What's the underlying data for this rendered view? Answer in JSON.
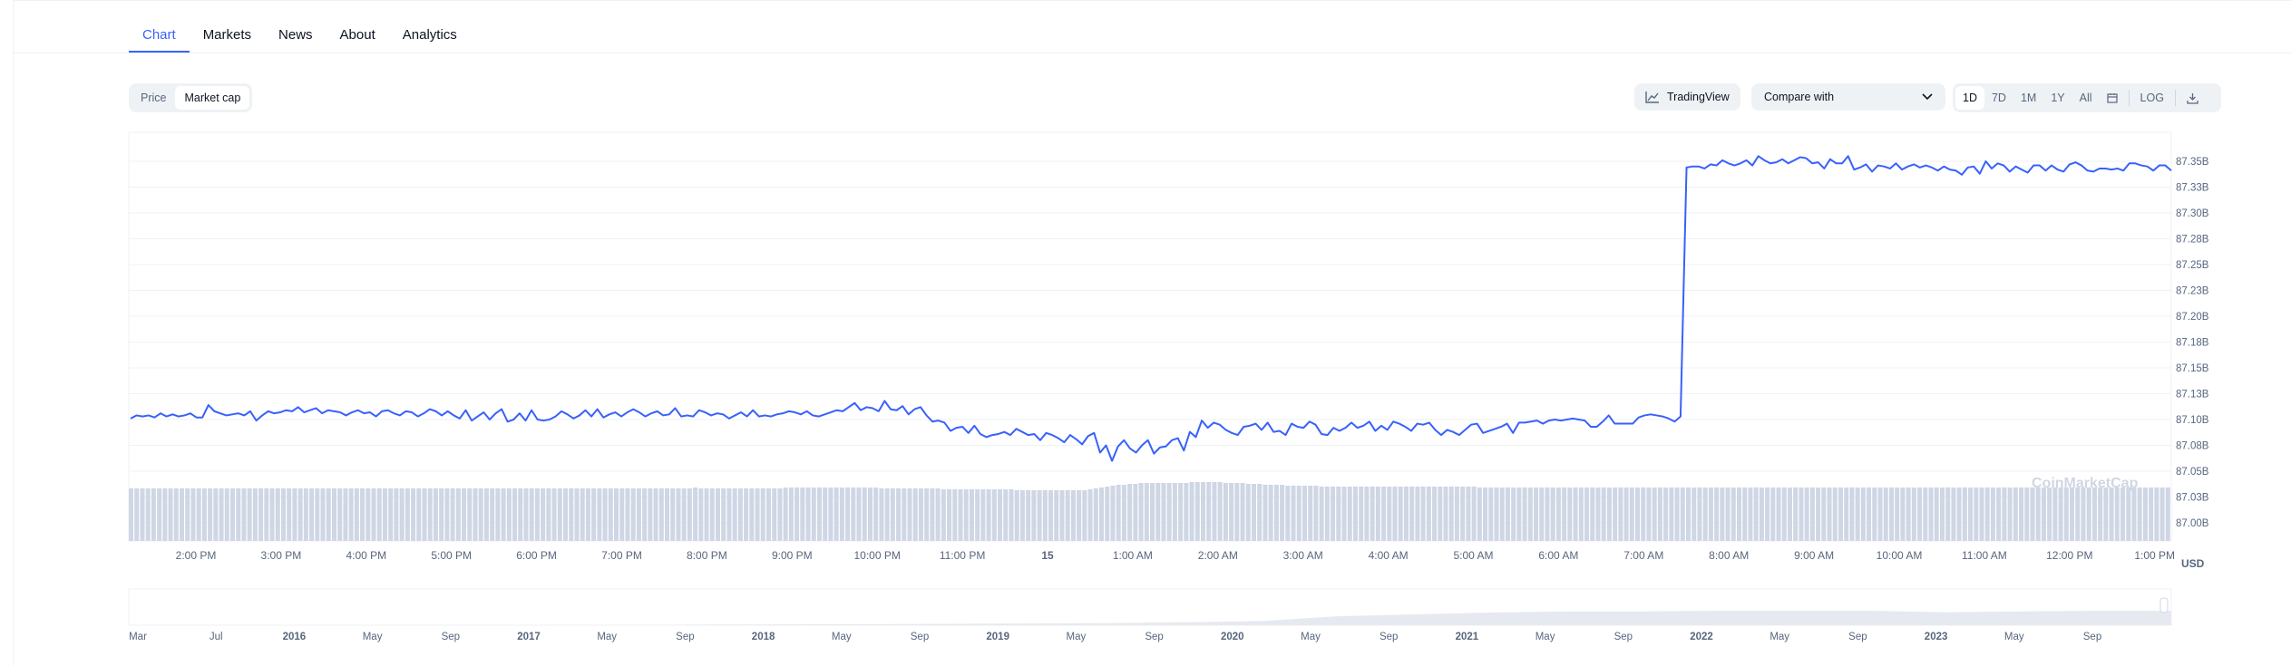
{
  "tabs": [
    {
      "label": "Chart",
      "active": true
    },
    {
      "label": "Markets",
      "active": false
    },
    {
      "label": "News",
      "active": false
    },
    {
      "label": "About",
      "active": false
    },
    {
      "label": "Analytics",
      "active": false
    }
  ],
  "toolbar": {
    "metric_options": [
      {
        "label": "Price",
        "active": false
      },
      {
        "label": "Market cap",
        "active": true
      }
    ],
    "tradingview_label": "TradingView",
    "compare_label": "Compare with",
    "ranges": [
      {
        "label": "1D",
        "active": true
      },
      {
        "label": "7D",
        "active": false
      },
      {
        "label": "1M",
        "active": false
      },
      {
        "label": "1Y",
        "active": false
      },
      {
        "label": "All",
        "active": false
      }
    ],
    "calendar_icon": "calendar-icon",
    "log_label": "LOG",
    "download_icon": "download-icon"
  },
  "watermark": "CoinMarketCap",
  "colors": {
    "accent": "#3861fb",
    "line": "#3861fb",
    "volume": "#cfd6e4",
    "grid": "#eff2f5",
    "axis_text": "#58667e"
  },
  "chart_data": {
    "type": "line",
    "y_unit": "USD",
    "ylim": [
      87.0,
      87.36
    ],
    "y_ticks": [
      "87.35B",
      "87.33B",
      "87.30B",
      "87.28B",
      "87.25B",
      "87.23B",
      "87.20B",
      "87.18B",
      "87.15B",
      "87.13B",
      "87.10B",
      "87.08B",
      "87.05B",
      "87.03B",
      "87.00B"
    ],
    "x_ticks": [
      "2:00 PM",
      "3:00 PM",
      "4:00 PM",
      "5:00 PM",
      "6:00 PM",
      "7:00 PM",
      "8:00 PM",
      "9:00 PM",
      "10:00 PM",
      "11:00 PM",
      "15",
      "1:00 AM",
      "2:00 AM",
      "3:00 AM",
      "4:00 AM",
      "5:00 AM",
      "6:00 AM",
      "7:00 AM",
      "8:00 AM",
      "9:00 AM",
      "10:00 AM",
      "11:00 AM",
      "12:00 PM",
      "1:00 PM"
    ],
    "x_tick_bold": [
      "15"
    ],
    "series": [
      {
        "values": [
          87.101,
          87.104,
          87.103,
          87.104,
          87.102,
          87.106,
          87.103,
          87.105,
          87.103,
          87.104,
          87.106,
          87.102,
          87.102,
          87.114,
          87.108,
          87.106,
          87.104,
          87.105,
          87.106,
          87.104,
          87.108,
          87.099,
          87.104,
          87.108,
          87.106,
          87.107,
          87.109,
          87.108,
          87.112,
          87.107,
          87.109,
          87.111,
          87.106,
          87.109,
          87.108,
          87.107,
          87.104,
          87.107,
          87.109,
          87.106,
          87.107,
          87.103,
          87.108,
          87.109,
          87.106,
          87.104,
          87.108,
          87.107,
          87.103,
          87.106,
          87.11,
          87.108,
          87.104,
          87.108,
          87.104,
          87.101,
          87.109,
          87.099,
          87.103,
          87.107,
          87.1,
          87.106,
          87.11,
          87.098,
          87.1,
          87.106,
          87.099,
          87.109,
          87.1,
          87.099,
          87.1,
          87.103,
          87.108,
          87.105,
          87.101,
          87.104,
          87.109,
          87.103,
          87.11,
          87.102,
          87.105,
          87.107,
          87.103,
          87.107,
          87.11,
          87.107,
          87.103,
          87.106,
          87.108,
          87.104,
          87.105,
          87.111,
          87.103,
          87.104,
          87.103,
          87.109,
          87.107,
          87.104,
          87.106,
          87.105,
          87.101,
          87.104,
          87.107,
          87.103,
          87.109,
          87.103,
          87.104,
          87.103,
          87.105,
          87.106,
          87.108,
          87.107,
          87.105,
          87.108,
          87.104,
          87.103,
          87.105,
          87.107,
          87.109,
          87.108,
          87.112,
          87.116,
          87.109,
          87.112,
          87.111,
          87.108,
          87.118,
          87.11,
          87.109,
          87.113,
          87.105,
          87.11,
          87.112,
          87.104,
          87.098,
          87.099,
          87.097,
          87.089,
          87.092,
          87.093,
          87.087,
          87.094,
          87.086,
          87.083,
          87.085,
          87.086,
          87.088,
          87.085,
          87.091,
          87.088,
          87.085,
          87.086,
          87.08,
          87.087,
          87.085,
          87.082,
          87.078,
          87.085,
          87.081,
          87.076,
          87.084,
          87.087,
          87.068,
          87.075,
          87.06,
          87.074,
          87.08,
          87.072,
          87.068,
          87.075,
          87.08,
          87.067,
          87.073,
          87.074,
          87.08,
          87.082,
          87.07,
          87.088,
          87.083,
          87.099,
          87.092,
          87.097,
          87.095,
          87.09,
          87.087,
          87.085,
          87.093,
          87.094,
          87.096,
          87.09,
          87.097,
          87.088,
          87.089,
          87.085,
          87.096,
          87.093,
          87.092,
          87.098,
          87.095,
          87.086,
          87.085,
          87.092,
          87.089,
          87.092,
          87.097,
          87.092,
          87.094,
          87.098,
          87.089,
          87.094,
          87.09,
          87.098,
          87.096,
          87.093,
          87.089,
          87.096,
          87.095,
          87.097,
          87.09,
          87.085,
          87.09,
          87.088,
          87.085,
          87.09,
          87.095,
          87.096,
          87.087,
          87.089,
          87.091,
          87.093,
          87.096,
          87.087,
          87.097,
          87.097,
          87.098,
          87.099,
          87.096,
          87.099,
          87.1,
          87.099,
          87.1,
          87.101,
          87.1,
          87.099,
          87.093,
          87.093,
          87.098,
          87.104,
          87.096,
          87.096,
          87.096,
          87.096,
          87.102,
          87.104,
          87.105,
          87.104,
          87.103,
          87.101,
          87.098,
          87.103,
          87.344,
          87.345,
          87.345,
          87.343,
          87.347,
          87.346,
          87.351,
          87.348,
          87.346,
          87.348,
          87.351,
          87.346,
          87.355,
          87.351,
          87.348,
          87.349,
          87.352,
          87.348,
          87.351,
          87.354,
          87.353,
          87.348,
          87.349,
          87.343,
          87.352,
          87.348,
          87.348,
          87.355,
          87.342,
          87.344,
          87.347,
          87.34,
          87.346,
          87.345,
          87.343,
          87.348,
          87.342,
          87.345,
          87.347,
          87.344,
          87.346,
          87.344,
          87.341,
          87.345,
          87.342,
          87.341,
          87.337,
          87.344,
          87.345,
          87.338,
          87.35,
          87.343,
          87.348,
          87.346,
          87.34,
          87.345,
          87.342,
          87.339,
          87.346,
          87.346,
          87.341,
          87.346,
          87.342,
          87.34,
          87.347,
          87.349,
          87.346,
          87.341,
          87.34,
          87.343,
          87.343,
          87.342,
          87.343,
          87.341,
          87.348,
          87.348,
          87.346,
          87.345,
          87.341,
          87.346,
          87.346,
          87.341
        ]
      }
    ],
    "volume": {
      "values": [
        0.58,
        0.58,
        0.58,
        0.58,
        0.58,
        0.58,
        0.58,
        0.58,
        0.58,
        0.58,
        0.58,
        0.58,
        0.58,
        0.58,
        0.58,
        0.58,
        0.58,
        0.58,
        0.58,
        0.58,
        0.58,
        0.58,
        0.58,
        0.58,
        0.58,
        0.58,
        0.58,
        0.58,
        0.58,
        0.58,
        0.58,
        0.58,
        0.58,
        0.58,
        0.58,
        0.58,
        0.58,
        0.58,
        0.58,
        0.58,
        0.58,
        0.58,
        0.58,
        0.58,
        0.58,
        0.58,
        0.58,
        0.58,
        0.58,
        0.58,
        0.58,
        0.58,
        0.58,
        0.58,
        0.58,
        0.58,
        0.58,
        0.58,
        0.58,
        0.58,
        0.58,
        0.58,
        0.58,
        0.58,
        0.58,
        0.58,
        0.58,
        0.58,
        0.58,
        0.58,
        0.58,
        0.58,
        0.58,
        0.58,
        0.58,
        0.58,
        0.58,
        0.58,
        0.58,
        0.58,
        0.58,
        0.58,
        0.58,
        0.58,
        0.58,
        0.58,
        0.58,
        0.58,
        0.58,
        0.58,
        0.58,
        0.58,
        0.58,
        0.58,
        0.58,
        0.58,
        0.58,
        0.58,
        0.58,
        0.58,
        0.59,
        0.58,
        0.58,
        0.58,
        0.58,
        0.58,
        0.58,
        0.58,
        0.58,
        0.58,
        0.58,
        0.58,
        0.58,
        0.58,
        0.58,
        0.58,
        0.59,
        0.59,
        0.59,
        0.59,
        0.59,
        0.59,
        0.59,
        0.59,
        0.59,
        0.59,
        0.59,
        0.59,
        0.59,
        0.59,
        0.59,
        0.59,
        0.59,
        0.58,
        0.58,
        0.58,
        0.58,
        0.58,
        0.58,
        0.58,
        0.58,
        0.58,
        0.58,
        0.58,
        0.57,
        0.57,
        0.57,
        0.57,
        0.57,
        0.57,
        0.57,
        0.57,
        0.57,
        0.57,
        0.57,
        0.57,
        0.57,
        0.56,
        0.56,
        0.56,
        0.56,
        0.56,
        0.56,
        0.56,
        0.56,
        0.56,
        0.56,
        0.56,
        0.56,
        0.56,
        0.57,
        0.58,
        0.59,
        0.6,
        0.61,
        0.62,
        0.62,
        0.63,
        0.63,
        0.64,
        0.64,
        0.64,
        0.64,
        0.64,
        0.64,
        0.64,
        0.64,
        0.64,
        0.65,
        0.65,
        0.65,
        0.65,
        0.65,
        0.65,
        0.64,
        0.64,
        0.64,
        0.64,
        0.63,
        0.63,
        0.63,
        0.62,
        0.62,
        0.62,
        0.62,
        0.61,
        0.61,
        0.61,
        0.61,
        0.61,
        0.61,
        0.6,
        0.6,
        0.6,
        0.6,
        0.6,
        0.6,
        0.6,
        0.6,
        0.6,
        0.6,
        0.6,
        0.6,
        0.6,
        0.6,
        0.6,
        0.6,
        0.6,
        0.6,
        0.6,
        0.6,
        0.6,
        0.6,
        0.6,
        0.6,
        0.6,
        0.6,
        0.6,
        0.6,
        0.59,
        0.59,
        0.59,
        0.59,
        0.59,
        0.59,
        0.59,
        0.59,
        0.59,
        0.59,
        0.59,
        0.59,
        0.59,
        0.59,
        0.59,
        0.59,
        0.59,
        0.59,
        0.59,
        0.59,
        0.59,
        0.59,
        0.59,
        0.59,
        0.59,
        0.59,
        0.59,
        0.59,
        0.59,
        0.59,
        0.59,
        0.59,
        0.59,
        0.59,
        0.59,
        0.59,
        0.59,
        0.59,
        0.59,
        0.59,
        0.59,
        0.59,
        0.59,
        0.59,
        0.59,
        0.59,
        0.59,
        0.59,
        0.59,
        0.59,
        0.59,
        0.59,
        0.59,
        0.59,
        0.59,
        0.59,
        0.59,
        0.59,
        0.59,
        0.59,
        0.59,
        0.59,
        0.59,
        0.59,
        0.59,
        0.59,
        0.59,
        0.59,
        0.59,
        0.59,
        0.59,
        0.59,
        0.59,
        0.59,
        0.59,
        0.59,
        0.59,
        0.59,
        0.59,
        0.59,
        0.59,
        0.59,
        0.59,
        0.59,
        0.59,
        0.59,
        0.59,
        0.59,
        0.59,
        0.59,
        0.59,
        0.59,
        0.59,
        0.59,
        0.59,
        0.59,
        0.59,
        0.59,
        0.59,
        0.59,
        0.59,
        0.59,
        0.59,
        0.59,
        0.59,
        0.59,
        0.59,
        0.59,
        0.59,
        0.59,
        0.59,
        0.59,
        0.59,
        0.59,
        0.59,
        0.59,
        0.59,
        0.59,
        0.59,
        0.59,
        0.59,
        0.59,
        0.59
      ]
    },
    "navigator": {
      "x_ticks": [
        "Mar",
        "Jul",
        "2016",
        "May",
        "Sep",
        "2017",
        "May",
        "Sep",
        "2018",
        "May",
        "Sep",
        "2019",
        "May",
        "Sep",
        "2020",
        "May",
        "Sep",
        "2021",
        "May",
        "Sep",
        "2022",
        "May",
        "Sep",
        "2023",
        "May",
        "Sep"
      ],
      "x_tick_bold": [
        "2016",
        "2017",
        "2018",
        "2019",
        "2020",
        "2021",
        "2022",
        "2023"
      ],
      "values": [
        0.0,
        0.0,
        0.0,
        0.0,
        0.0,
        0.0,
        0.01,
        0.01,
        0.02,
        0.03,
        0.03,
        0.04,
        0.05,
        0.06,
        0.08,
        0.12,
        0.25,
        0.3,
        0.35,
        0.38,
        0.38,
        0.4,
        0.4,
        0.4,
        0.36,
        0.38,
        0.4,
        0.4
      ]
    }
  }
}
